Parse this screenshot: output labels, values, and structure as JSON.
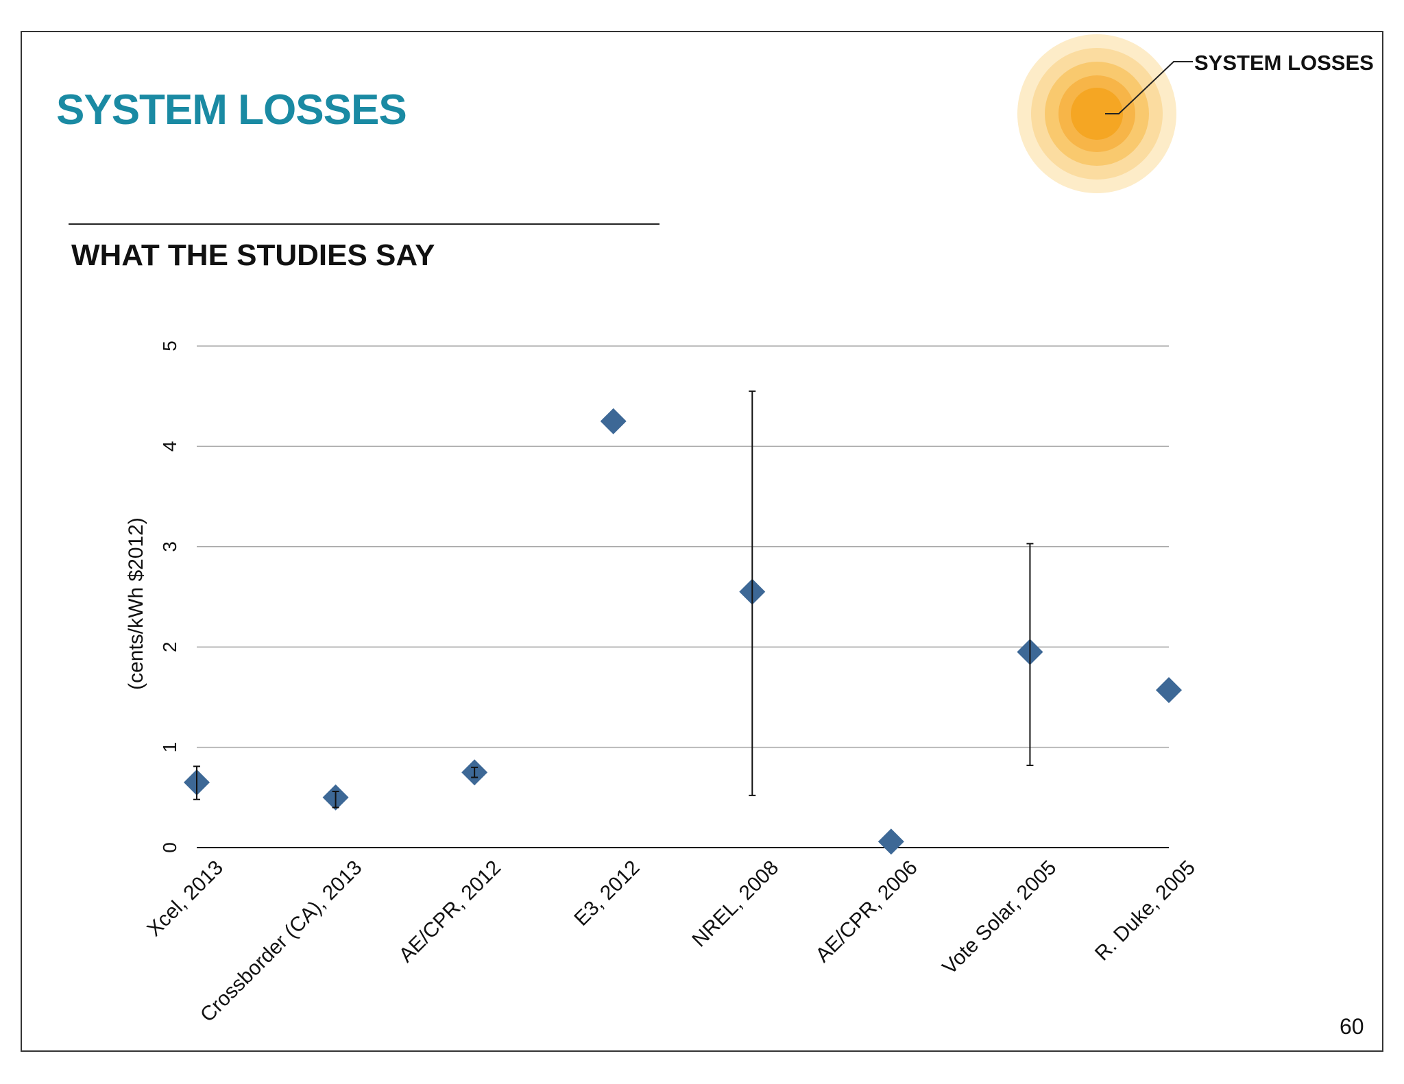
{
  "slide": {
    "title": "SYSTEM LOSSES",
    "subtitle": "WHAT THE STUDIES SAY",
    "badge_label": "SYSTEM LOSSES",
    "page_number": "60"
  },
  "colors": {
    "title": "#1a8aa3",
    "marker": "#3d6896",
    "sun_core": "#f5a623",
    "gridline": "#a8a8a8"
  },
  "chart_data": {
    "type": "scatter",
    "title": "",
    "xlabel": "",
    "ylabel": "(cents/kWh $2012)",
    "ylim": [
      0,
      5
    ],
    "yticks": [
      "0",
      "1",
      "2",
      "3",
      "4",
      "5"
    ],
    "grid": true,
    "marker": "diamond",
    "categories": [
      "Xcel, 2013",
      "Crossborder (CA), 2013",
      "AE/CPR, 2012",
      "E3, 2012",
      "NREL, 2008",
      "AE/CPR, 2006",
      "Vote Solar, 2005",
      "R. Duke, 2005"
    ],
    "series": [
      {
        "values": [
          0.65,
          0.5,
          0.75,
          4.25,
          2.55,
          0.06,
          1.95,
          1.57
        ],
        "error_low": [
          0.48,
          0.4,
          0.7,
          null,
          0.52,
          null,
          0.82,
          null
        ],
        "error_high": [
          0.81,
          0.56,
          0.8,
          null,
          4.55,
          null,
          3.03,
          null
        ]
      }
    ]
  }
}
